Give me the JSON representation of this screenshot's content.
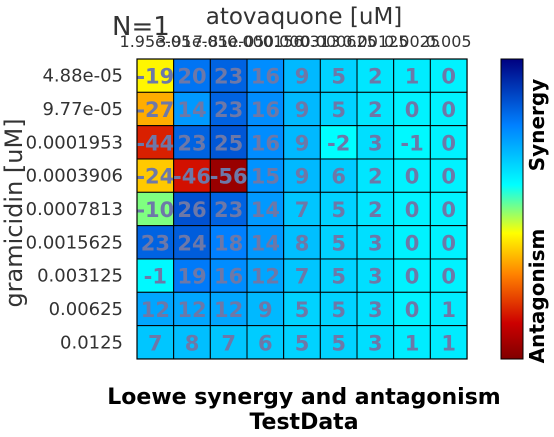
{
  "chart_data": {
    "type": "heatmap",
    "corner_label": "N=1",
    "xlabel": "atovaquone [uM]",
    "ylabel": "gramicidin [uM]",
    "title_lines": [
      "Loewe synergy and antagonism",
      "TestData"
    ],
    "x_categories": [
      "1.95e-05",
      "3.91e-05",
      "7.81e-05",
      "0.000156",
      "0.000313",
      "0.000625",
      "0.00125",
      "0.0025",
      "0.005"
    ],
    "y_categories": [
      "4.88e-05",
      "9.77e-05",
      "0.0001953",
      "0.0003906",
      "0.0007813",
      "0.0015625",
      "0.003125",
      "0.00625",
      "0.0125"
    ],
    "values": [
      [
        -19,
        20,
        23,
        16,
        9,
        5,
        2,
        1,
        0
      ],
      [
        -27,
        14,
        23,
        16,
        9,
        5,
        2,
        0,
        0
      ],
      [
        -44,
        23,
        25,
        16,
        9,
        -2,
        3,
        -1,
        0
      ],
      [
        -24,
        -46,
        -56,
        15,
        9,
        6,
        2,
        0,
        0
      ],
      [
        -10,
        26,
        23,
        14,
        7,
        5,
        2,
        0,
        0
      ],
      [
        23,
        24,
        18,
        14,
        8,
        5,
        3,
        0,
        0
      ],
      [
        -1,
        19,
        16,
        12,
        7,
        5,
        3,
        0,
        0
      ],
      [
        12,
        12,
        12,
        9,
        5,
        5,
        3,
        0,
        1
      ],
      [
        7,
        8,
        7,
        6,
        5,
        5,
        3,
        1,
        1
      ]
    ],
    "color_range": [
      -60,
      40
    ],
    "colorbar_labels": {
      "top": "Synergy",
      "bottom": "Antagonism"
    },
    "colors": {
      "text": "#6d78a8",
      "grid": "#000000"
    }
  }
}
